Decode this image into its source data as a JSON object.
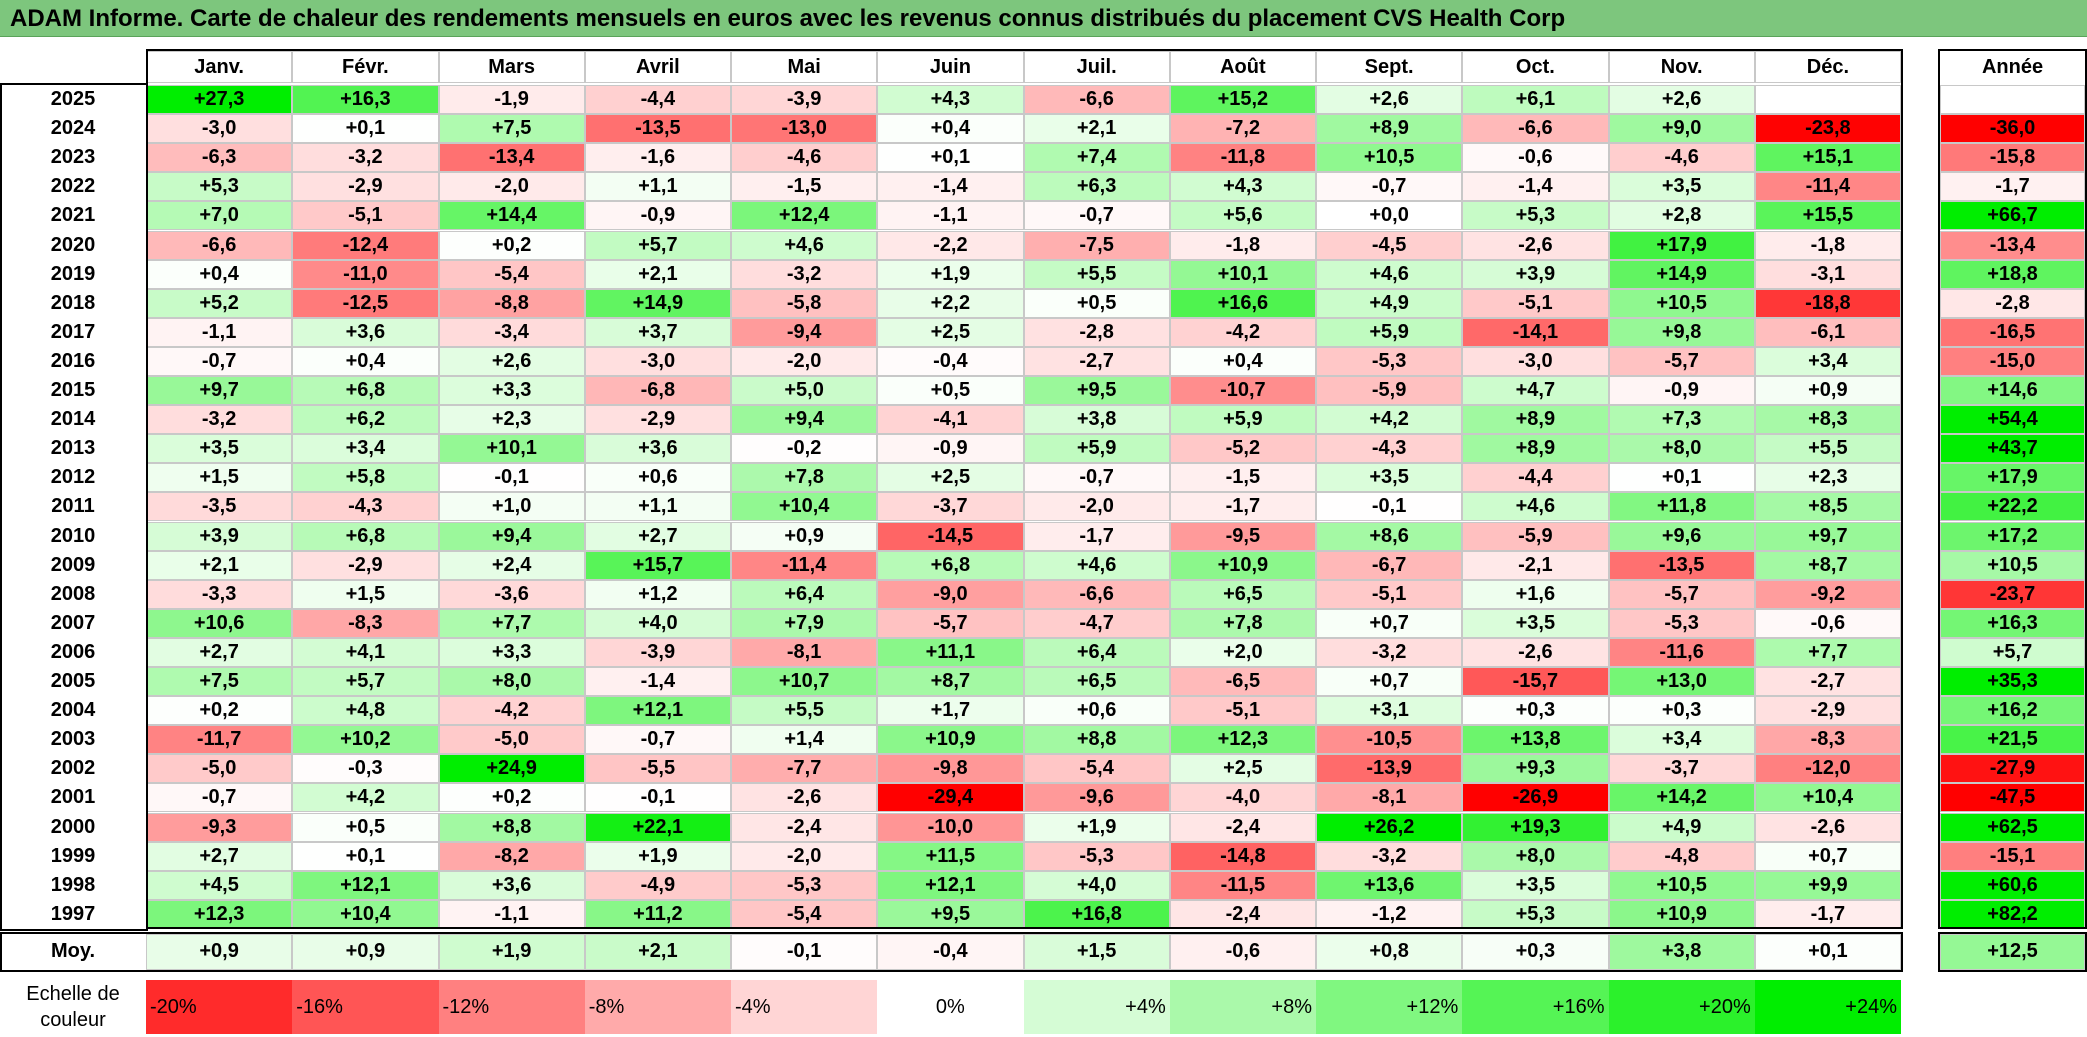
{
  "title": "ADAM Informe. Carte de chaleur des rendements mensuels en euros avec les revenus connus distribués du placement CVS Health Corp",
  "chart_data": {
    "type": "heatmap",
    "months": [
      "Janv.",
      "Févr.",
      "Mars",
      "Avril",
      "Mai",
      "Juin",
      "Juil.",
      "Août",
      "Sept.",
      "Oct.",
      "Nov.",
      "Déc."
    ],
    "annual_header": "Année",
    "average_label": "Moy.",
    "rows": [
      {
        "year": "2025",
        "values": [
          "+27,3",
          "+16,3",
          "-1,9",
          "-4,4",
          "-3,9",
          "+4,3",
          "-6,6",
          "+15,2",
          "+2,6",
          "+6,1",
          "+2,6",
          ""
        ],
        "annual": ""
      },
      {
        "year": "2024",
        "values": [
          "-3,0",
          "+0,1",
          "+7,5",
          "-13,5",
          "-13,0",
          "+0,4",
          "+2,1",
          "-7,2",
          "+8,9",
          "-6,6",
          "+9,0",
          "-23,8"
        ],
        "annual": "-36,0"
      },
      {
        "year": "2023",
        "values": [
          "-6,3",
          "-3,2",
          "-13,4",
          "-1,6",
          "-4,6",
          "+0,1",
          "+7,4",
          "-11,8",
          "+10,5",
          "-0,6",
          "-4,6",
          "+15,1"
        ],
        "annual": "-15,8"
      },
      {
        "year": "2022",
        "values": [
          "+5,3",
          "-2,9",
          "-2,0",
          "+1,1",
          "-1,5",
          "-1,4",
          "+6,3",
          "+4,3",
          "-0,7",
          "-1,4",
          "+3,5",
          "-11,4"
        ],
        "annual": "-1,7"
      },
      {
        "year": "2021",
        "values": [
          "+7,0",
          "-5,1",
          "+14,4",
          "-0,9",
          "+12,4",
          "-1,1",
          "-0,7",
          "+5,6",
          "+0,0",
          "+5,3",
          "+2,8",
          "+15,5"
        ],
        "annual": "+66,7"
      },
      {
        "year": "2020",
        "values": [
          "-6,6",
          "-12,4",
          "+0,2",
          "+5,7",
          "+4,6",
          "-2,2",
          "-7,5",
          "-1,8",
          "-4,5",
          "-2,6",
          "+17,9",
          "-1,8"
        ],
        "annual": "-13,4"
      },
      {
        "year": "2019",
        "values": [
          "+0,4",
          "-11,0",
          "-5,4",
          "+2,1",
          "-3,2",
          "+1,9",
          "+5,5",
          "+10,1",
          "+4,6",
          "+3,9",
          "+14,9",
          "-3,1"
        ],
        "annual": "+18,8"
      },
      {
        "year": "2018",
        "values": [
          "+5,2",
          "-12,5",
          "-8,8",
          "+14,9",
          "-5,8",
          "+2,2",
          "+0,5",
          "+16,6",
          "+4,9",
          "-5,1",
          "+10,5",
          "-18,8"
        ],
        "annual": "-2,8"
      },
      {
        "year": "2017",
        "values": [
          "-1,1",
          "+3,6",
          "-3,4",
          "+3,7",
          "-9,4",
          "+2,5",
          "-2,8",
          "-4,2",
          "+5,9",
          "-14,1",
          "+9,8",
          "-6,1"
        ],
        "annual": "-16,5"
      },
      {
        "year": "2016",
        "values": [
          "-0,7",
          "+0,4",
          "+2,6",
          "-3,0",
          "-2,0",
          "-0,4",
          "-2,7",
          "+0,4",
          "-5,3",
          "-3,0",
          "-5,7",
          "+3,4"
        ],
        "annual": "-15,0"
      },
      {
        "year": "2015",
        "values": [
          "+9,7",
          "+6,8",
          "+3,3",
          "-6,8",
          "+5,0",
          "+0,5",
          "+9,5",
          "-10,7",
          "-5,9",
          "+4,7",
          "-0,9",
          "+0,9"
        ],
        "annual": "+14,6"
      },
      {
        "year": "2014",
        "values": [
          "-3,2",
          "+6,2",
          "+2,3",
          "-2,9",
          "+9,4",
          "-4,1",
          "+3,8",
          "+5,9",
          "+4,2",
          "+8,9",
          "+7,3",
          "+8,3"
        ],
        "annual": "+54,4"
      },
      {
        "year": "2013",
        "values": [
          "+3,5",
          "+3,4",
          "+10,1",
          "+3,6",
          "-0,2",
          "-0,9",
          "+5,9",
          "-5,2",
          "-4,3",
          "+8,9",
          "+8,0",
          "+5,5"
        ],
        "annual": "+43,7"
      },
      {
        "year": "2012",
        "values": [
          "+1,5",
          "+5,8",
          "-0,1",
          "+0,6",
          "+7,8",
          "+2,5",
          "-0,7",
          "-1,5",
          "+3,5",
          "-4,4",
          "+0,1",
          "+2,3"
        ],
        "annual": "+17,9"
      },
      {
        "year": "2011",
        "values": [
          "-3,5",
          "-4,3",
          "+1,0",
          "+1,1",
          "+10,4",
          "-3,7",
          "-2,0",
          "-1,7",
          "-0,1",
          "+4,6",
          "+11,8",
          "+8,5"
        ],
        "annual": "+22,2"
      },
      {
        "year": "2010",
        "values": [
          "+3,9",
          "+6,8",
          "+9,4",
          "+2,7",
          "+0,9",
          "-14,5",
          "-1,7",
          "-9,5",
          "+8,6",
          "-5,9",
          "+9,6",
          "+9,7"
        ],
        "annual": "+17,2"
      },
      {
        "year": "2009",
        "values": [
          "+2,1",
          "-2,9",
          "+2,4",
          "+15,7",
          "-11,4",
          "+6,8",
          "+4,6",
          "+10,9",
          "-6,7",
          "-2,1",
          "-13,5",
          "+8,7"
        ],
        "annual": "+10,5"
      },
      {
        "year": "2008",
        "values": [
          "-3,3",
          "+1,5",
          "-3,6",
          "+1,2",
          "+6,4",
          "-9,0",
          "-6,6",
          "+6,5",
          "-5,1",
          "+1,6",
          "-5,7",
          "-9,2"
        ],
        "annual": "-23,7"
      },
      {
        "year": "2007",
        "values": [
          "+10,6",
          "-8,3",
          "+7,7",
          "+4,0",
          "+7,9",
          "-5,7",
          "-4,7",
          "+7,8",
          "+0,7",
          "+3,5",
          "-5,3",
          "-0,6"
        ],
        "annual": "+16,3"
      },
      {
        "year": "2006",
        "values": [
          "+2,7",
          "+4,1",
          "+3,3",
          "-3,9",
          "-8,1",
          "+11,1",
          "+6,4",
          "+2,0",
          "-3,2",
          "-2,6",
          "-11,6",
          "+7,7"
        ],
        "annual": "+5,7"
      },
      {
        "year": "2005",
        "values": [
          "+7,5",
          "+5,7",
          "+8,0",
          "-1,4",
          "+10,7",
          "+8,7",
          "+6,5",
          "-6,5",
          "+0,7",
          "-15,7",
          "+13,0",
          "-2,7"
        ],
        "annual": "+35,3"
      },
      {
        "year": "2004",
        "values": [
          "+0,2",
          "+4,8",
          "-4,2",
          "+12,1",
          "+5,5",
          "+1,7",
          "+0,6",
          "-5,1",
          "+3,1",
          "+0,3",
          "+0,3",
          "-2,9"
        ],
        "annual": "+16,2"
      },
      {
        "year": "2003",
        "values": [
          "-11,7",
          "+10,2",
          "-5,0",
          "-0,7",
          "+1,4",
          "+10,9",
          "+8,8",
          "+12,3",
          "-10,5",
          "+13,8",
          "+3,4",
          "-8,3"
        ],
        "annual": "+21,5"
      },
      {
        "year": "2002",
        "values": [
          "-5,0",
          "-0,3",
          "+24,9",
          "-5,5",
          "-7,7",
          "-9,8",
          "-5,4",
          "+2,5",
          "-13,9",
          "+9,3",
          "-3,7",
          "-12,0"
        ],
        "annual": "-27,9"
      },
      {
        "year": "2001",
        "values": [
          "-0,7",
          "+4,2",
          "+0,2",
          "-0,1",
          "-2,6",
          "-29,4",
          "-9,6",
          "-4,0",
          "-8,1",
          "-26,9",
          "+14,2",
          "+10,4"
        ],
        "annual": "-47,5"
      },
      {
        "year": "2000",
        "values": [
          "-9,3",
          "+0,5",
          "+8,8",
          "+22,1",
          "-2,4",
          "-10,0",
          "+1,9",
          "-2,4",
          "+26,2",
          "+19,3",
          "+4,9",
          "-2,6"
        ],
        "annual": "+62,5"
      },
      {
        "year": "1999",
        "values": [
          "+2,7",
          "+0,1",
          "-8,2",
          "+1,9",
          "-2,0",
          "+11,5",
          "-5,3",
          "-14,8",
          "-3,2",
          "+8,0",
          "-4,8",
          "+0,7"
        ],
        "annual": "-15,1"
      },
      {
        "year": "1998",
        "values": [
          "+4,5",
          "+12,1",
          "+3,6",
          "-4,9",
          "-5,3",
          "+12,1",
          "+4,0",
          "-11,5",
          "+13,6",
          "+3,5",
          "+10,5",
          "+9,9"
        ],
        "annual": "+60,6"
      },
      {
        "year": "1997",
        "values": [
          "+12,3",
          "+10,4",
          "-1,1",
          "+11,2",
          "-5,4",
          "+9,5",
          "+16,8",
          "-2,4",
          "-1,2",
          "+5,3",
          "+10,9",
          "-1,7"
        ],
        "annual": "+82,2"
      }
    ],
    "averages": [
      "+0,9",
      "+0,9",
      "+1,9",
      "+2,1",
      "-0,1",
      "-0,4",
      "+1,5",
      "-0,6",
      "+0,8",
      "+0,3",
      "+3,8",
      "+0,1"
    ],
    "average_annual": "+12,5",
    "legend": {
      "label": "Echelle de couleur",
      "steps": [
        "-20%",
        "-16%",
        "-12%",
        "-8%",
        "-4%",
        "0%",
        "+4%",
        "+8%",
        "+12%",
        "+16%",
        "+20%",
        "+24%"
      ]
    }
  }
}
